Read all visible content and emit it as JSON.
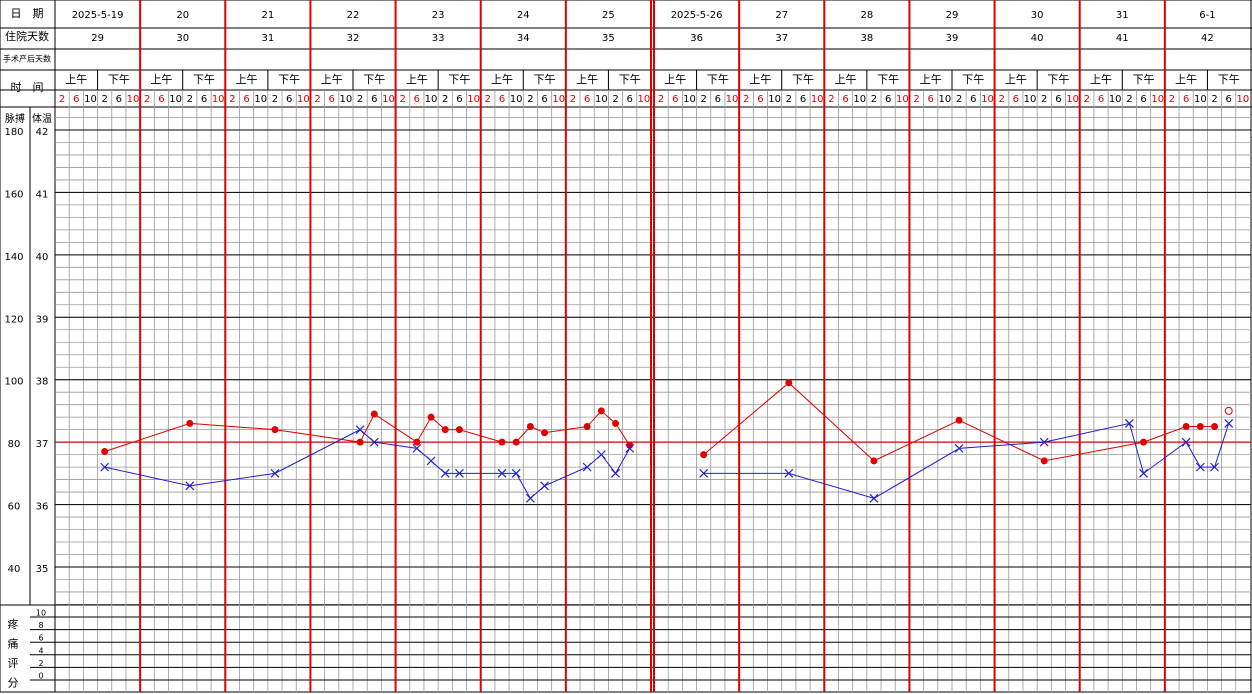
{
  "header": {
    "labels": {
      "date": "日　期",
      "day_count": "住院天数",
      "postop_days": "手术产后天数",
      "time": "时　间"
    },
    "dates": [
      "2025-5-19",
      "20",
      "21",
      "22",
      "23",
      "24",
      "25",
      "2025-5-26",
      "27",
      "28",
      "29",
      "30",
      "31",
      "6-1"
    ],
    "day_counts": [
      29,
      30,
      31,
      32,
      33,
      34,
      35,
      36,
      37,
      38,
      39,
      40,
      41,
      42
    ],
    "halves": [
      "上午",
      "下午"
    ],
    "time_slots": [
      2,
      6,
      10,
      2,
      6,
      10
    ],
    "time_slot_colors": [
      "#e00000",
      "#e00000",
      "#000000",
      "#000000",
      "#000000",
      "#e00000"
    ]
  },
  "chart_data": {
    "type": "line",
    "pulse_axis": {
      "label": "脉搏",
      "ylim": [
        40,
        180
      ],
      "yticks": [
        180,
        160,
        140,
        120,
        100,
        80,
        60,
        40
      ]
    },
    "temp_axis": {
      "label": "体温",
      "ylim": [
        35,
        42
      ],
      "yticks": [
        42,
        41,
        40,
        39,
        38,
        37,
        36,
        35
      ]
    },
    "pain_axis": {
      "label": "疼痛评分",
      "ylim": [
        0,
        10
      ],
      "yticks": [
        10,
        8,
        6,
        4,
        2,
        0
      ]
    },
    "reference_line": {
      "value": 37,
      "color": "#e00000"
    },
    "series": [
      {
        "axis": "pulse",
        "color": "#e00000",
        "marker": "dot",
        "x": [
          3,
          9,
          15,
          21,
          22,
          25,
          26,
          27,
          28,
          31,
          32,
          33,
          34,
          37,
          38,
          39,
          40,
          45,
          51,
          57,
          63,
          69,
          76,
          79,
          80,
          81
        ],
        "values": [
          77,
          86,
          84,
          80,
          89,
          80,
          88,
          84,
          84,
          80,
          80,
          85,
          83,
          85,
          90,
          86,
          79,
          76,
          99,
          74,
          87,
          74,
          80,
          85,
          85,
          85
        ]
      },
      {
        "axis": "pulse",
        "color": "#e00000",
        "marker": "hollow",
        "x": [
          82
        ],
        "values": [
          90
        ]
      },
      {
        "axis": "temp",
        "color": "#1f1fd0",
        "marker": "cross",
        "x": [
          3,
          9,
          15,
          21,
          22,
          25,
          26,
          27,
          28,
          31,
          32,
          33,
          34,
          37,
          38,
          39,
          40,
          45,
          51,
          57,
          63,
          69,
          75,
          76,
          79,
          80,
          81,
          82
        ],
        "values": [
          36.6,
          36.3,
          36.5,
          37.2,
          37.0,
          36.9,
          36.7,
          36.5,
          36.5,
          36.5,
          36.5,
          36.1,
          36.3,
          36.6,
          36.8,
          36.5,
          36.9,
          36.5,
          36.5,
          36.1,
          36.9,
          37.0,
          37.3,
          36.5,
          37.0,
          36.6,
          36.6,
          37.3
        ]
      }
    ]
  }
}
